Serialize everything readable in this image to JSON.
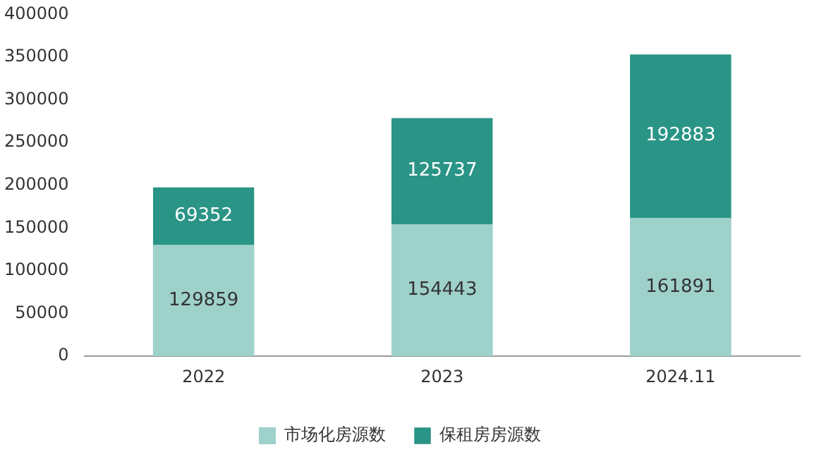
{
  "chart_data": {
    "type": "bar",
    "stacked": true,
    "categories": [
      "2022",
      "2023",
      "2024.11"
    ],
    "series": [
      {
        "name": "市场化房源数",
        "color": "#9fd1cb",
        "values": [
          129859,
          154443,
          161891
        ]
      },
      {
        "name": "保租房房源数",
        "color": "#2a9486",
        "values": [
          69352,
          125737,
          192883
        ]
      }
    ],
    "ylim": [
      0,
      400000
    ],
    "yticks": [
      0,
      50000,
      100000,
      150000,
      200000,
      250000,
      300000,
      350000,
      400000
    ],
    "grid": false,
    "legend": "bottom",
    "data_labels": true
  }
}
